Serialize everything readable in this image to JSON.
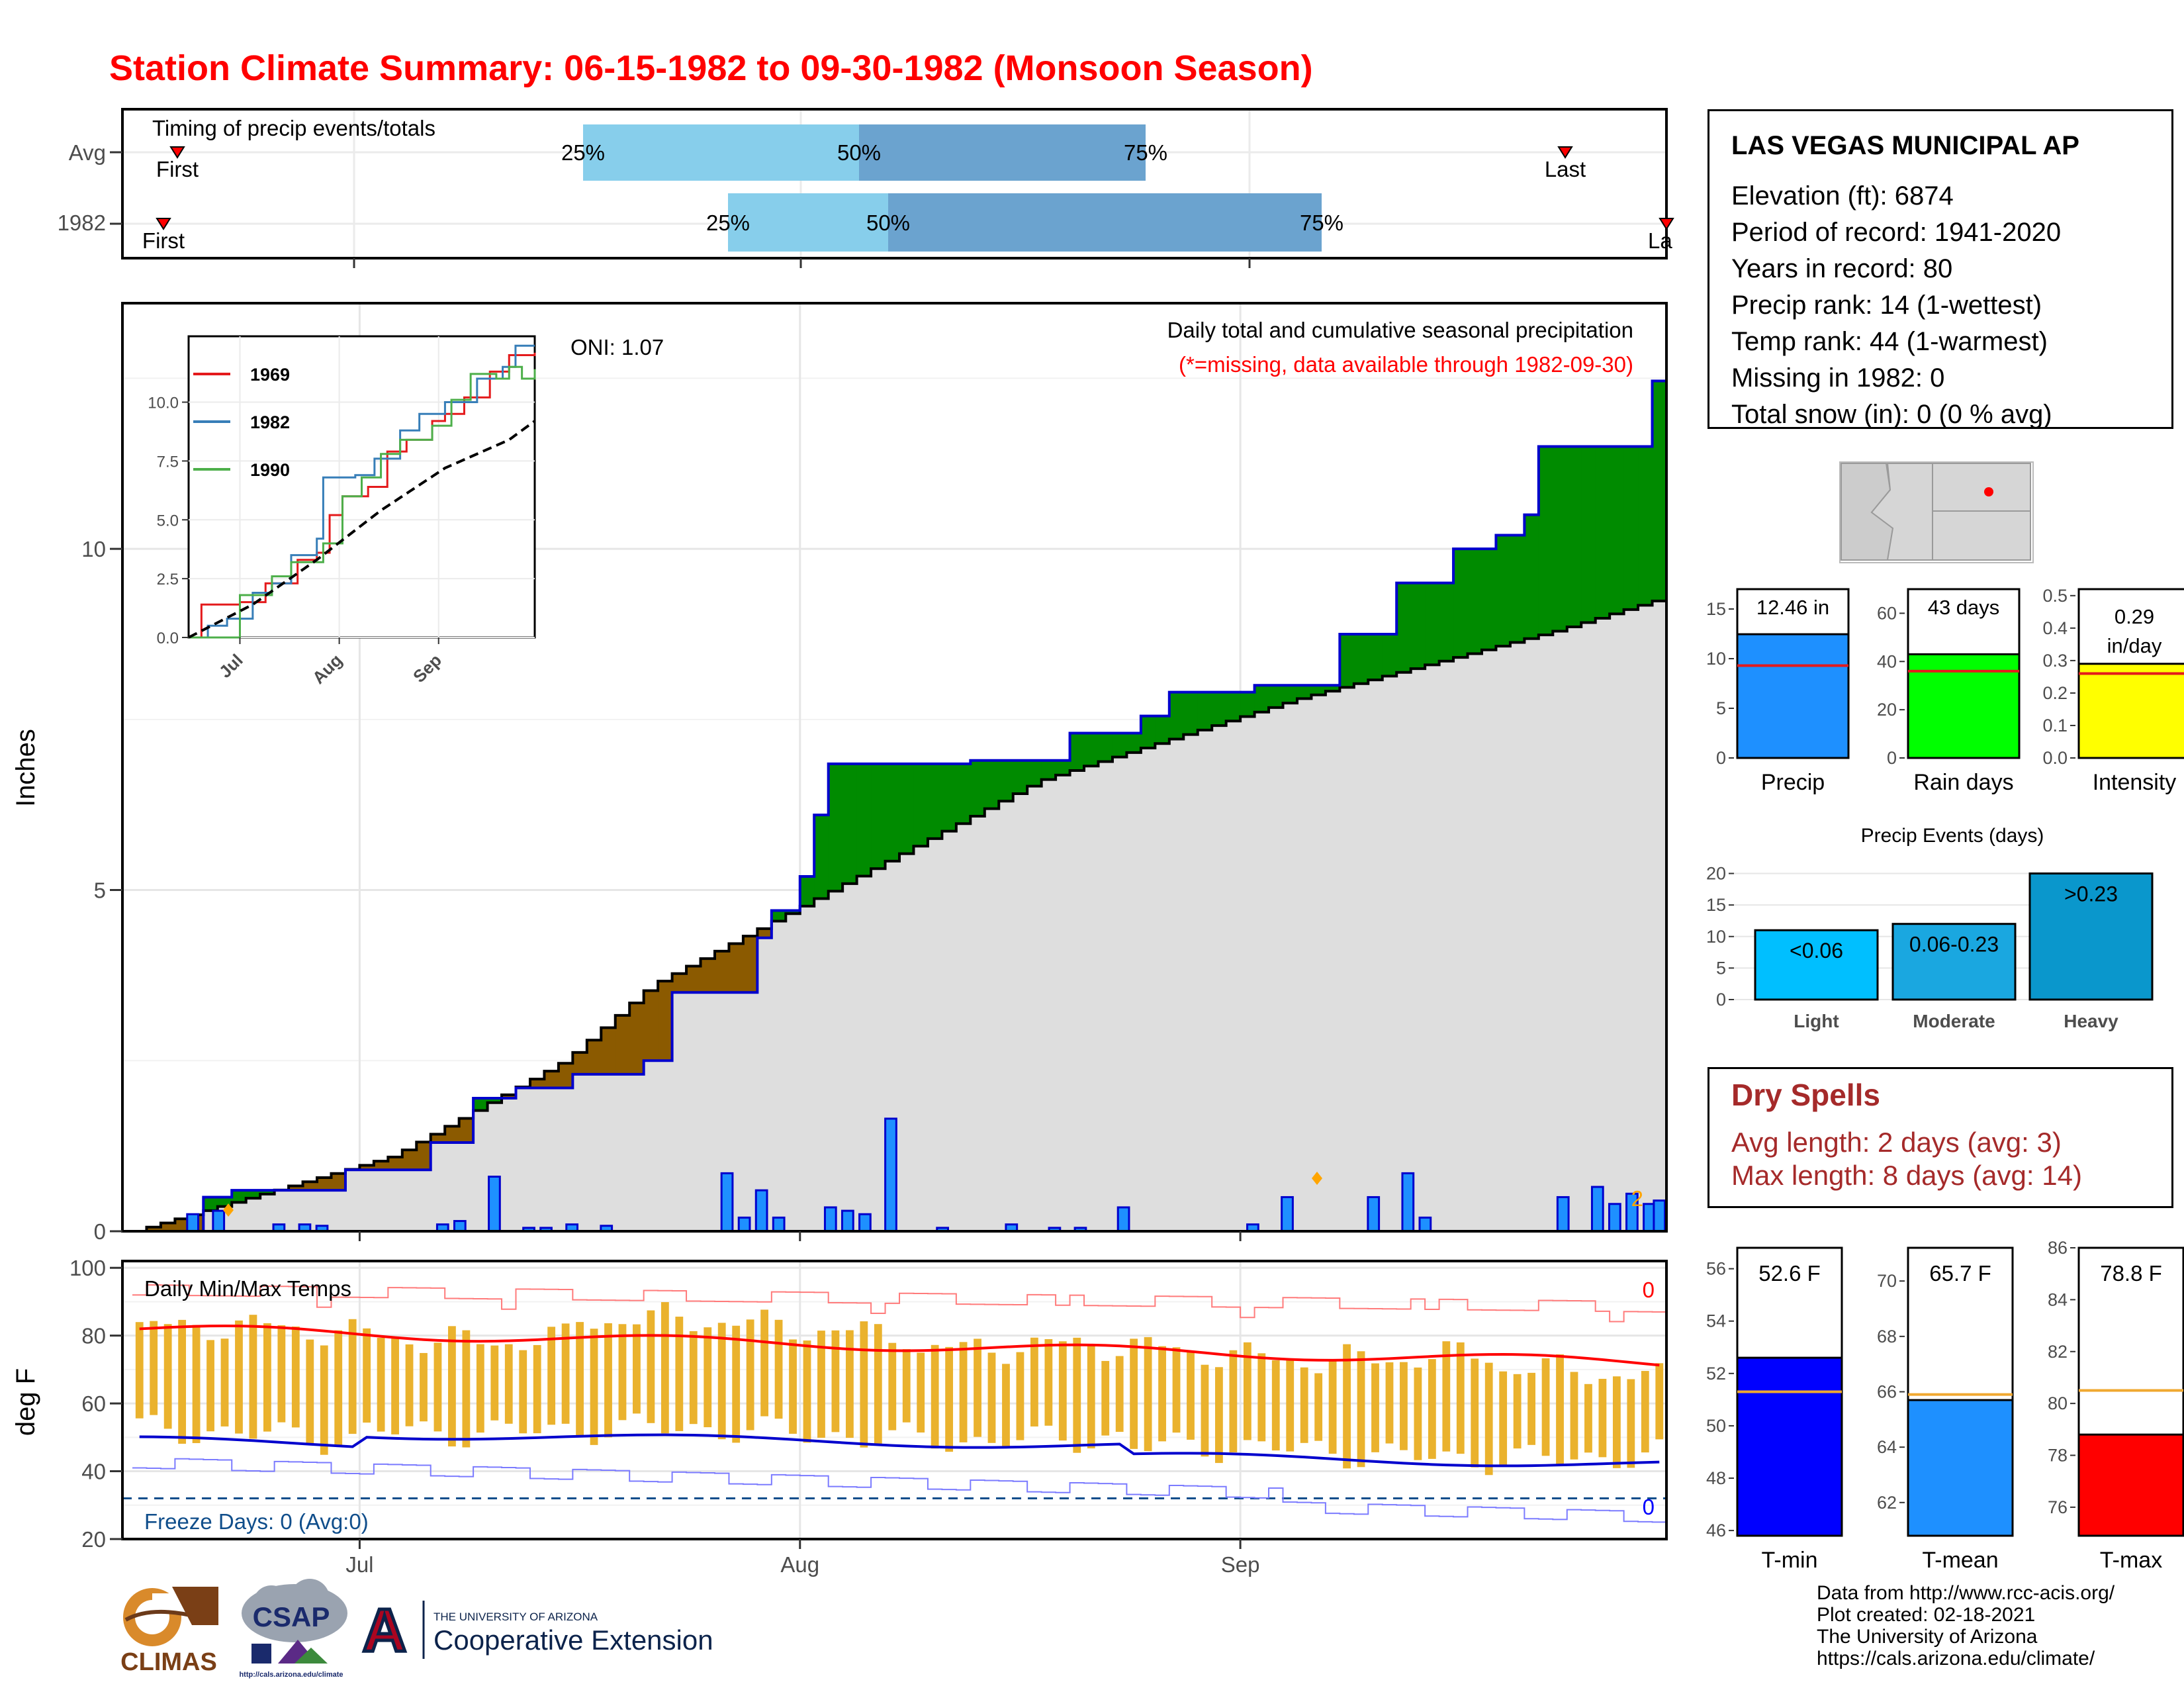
{
  "title": "Station Climate Summary: 06-15-1982 to 09-30-1982 (Monsoon Season)",
  "timing": {
    "label": "Timing of precip events/totals",
    "rows": [
      {
        "name": "Avg",
        "first": "First",
        "last": "Last",
        "q25": "25%",
        "q50": "50%",
        "q75": "75%"
      },
      {
        "name": "1982",
        "first": "First",
        "last": "La",
        "q25": "25%",
        "q50": "50%",
        "q75": "75%"
      }
    ]
  },
  "main": {
    "ylabel": "Inches",
    "oni": "ONI: 1.07",
    "caption": "Daily total and cumulative seasonal precipitation",
    "missing_note": "(*=missing, data available through 1982-09-30)",
    "missing_count": "2",
    "yticks": [
      "0",
      "5",
      "10"
    ]
  },
  "inset": {
    "legend": [
      "1969",
      "1982",
      "1990"
    ],
    "yticks": [
      "0.0",
      "2.5",
      "5.0",
      "7.5",
      "10.0"
    ],
    "xticks": [
      "Jul",
      "Aug",
      "Sep"
    ]
  },
  "temps": {
    "label": "Daily Min/Max Temps",
    "ylabel": "deg F",
    "yticks": [
      "20",
      "40",
      "60",
      "80",
      "100"
    ],
    "xticks": [
      "Jul",
      "Aug",
      "Sep"
    ],
    "hot_count": "0",
    "freeze_count": "0",
    "freeze_label": "Freeze Days: 0 (Avg:0)"
  },
  "station": {
    "name": "LAS VEGAS MUNICIPAL AP",
    "elevation": "Elevation (ft): 6874",
    "period": "Period of record: 1941-2020",
    "years": "Years in record: 80",
    "precip_rank": "Precip rank: 14 (1-wettest)",
    "temp_rank": "Temp rank: 44 (1-warmest)",
    "missing": "Missing in 1982: 0",
    "snow": "Total snow (in): 0 (0 % avg)"
  },
  "summary_bars": [
    {
      "label": "Precip",
      "value_text": "12.46 in",
      "value": 12.46,
      "avg": 9.3,
      "ymax": 17,
      "yticks": [
        "0",
        "5",
        "10",
        "15"
      ],
      "color": "#1e90ff"
    },
    {
      "label": "Rain days",
      "value_text": "43 days",
      "value": 43,
      "avg": 36,
      "ymax": 70,
      "yticks": [
        "0",
        "20",
        "40",
        "60"
      ],
      "color": "#00ff00"
    },
    {
      "label": "Intensity",
      "value_text": "0.29 in/day",
      "value": 0.29,
      "avg": 0.26,
      "ymax": 0.52,
      "yticks": [
        "0.0",
        "0.1",
        "0.2",
        "0.3",
        "0.4",
        "0.5"
      ],
      "color": "#ffff00"
    }
  ],
  "events": {
    "title": "Precip Events (days)",
    "yticks": [
      "0",
      "5",
      "10",
      "15",
      "20"
    ],
    "bars": [
      {
        "label": "Light",
        "tag": "<0.06",
        "value": 11
      },
      {
        "label": "Moderate",
        "tag": "0.06-0.23",
        "value": 12
      },
      {
        "label": "Heavy",
        "tag": ">0.23",
        "value": 20
      }
    ]
  },
  "dry_spells": {
    "title": "Dry Spells",
    "avg_length": "Avg length: 2 days (avg: 3)",
    "max_length": "Max length: 8 days (avg: 14)"
  },
  "temp_bars": [
    {
      "label": "T-min",
      "value_text": "52.6 F",
      "value": 52.6,
      "avg": 51.3,
      "ymin": 45.8,
      "ymax": 56.8,
      "yticks": [
        "46",
        "48",
        "50",
        "52",
        "54",
        "56"
      ],
      "color": "#0000ff"
    },
    {
      "label": "T-mean",
      "value_text": "65.7 F",
      "value": 65.7,
      "avg": 65.9,
      "ymin": 60.8,
      "ymax": 71.2,
      "yticks": [
        "62",
        "64",
        "66",
        "68",
        "70"
      ],
      "color": "#1e90ff"
    },
    {
      "label": "T-max",
      "value_text": "78.8 F",
      "value": 78.8,
      "avg": 80.5,
      "ymin": 74.9,
      "ymax": 86.0,
      "yticks": [
        "76",
        "78",
        "80",
        "82",
        "84",
        "86"
      ],
      "color": "#ff0000"
    }
  ],
  "credits": [
    "Data from http://www.rcc-acis.org/",
    "Plot created: 02-18-2021",
    "The University of Arizona",
    "https://cals.arizona.edu/climate/"
  ],
  "logos": {
    "climas": "CLIMAS",
    "csap": "CSAP",
    "csap_url": "http://cals.arizona.edu/climate",
    "ua_line1": "THE UNIVERSITY OF ARIZONA",
    "ua_line2": "Cooperative Extension",
    "ua_mark": "A"
  },
  "chart_data": {
    "type": "area",
    "title": "Daily total and cumulative seasonal precipitation",
    "ylabel": "Inches",
    "ylim": [
      0,
      13.6
    ],
    "x_start": "1982-06-15",
    "x_end": "1982-09-30",
    "series": [
      {
        "name": "cumulative 1982",
        "knots_day_value": [
          [
            0,
            0
          ],
          [
            7,
            0.5
          ],
          [
            11,
            0.6
          ],
          [
            24,
            0.9
          ],
          [
            33,
            1.3
          ],
          [
            38,
            1.95
          ],
          [
            43,
            2.1
          ],
          [
            50,
            2.3
          ],
          [
            59,
            2.5
          ],
          [
            61,
            3.5
          ],
          [
            72,
            4.3
          ],
          [
            73,
            4.7
          ],
          [
            76,
            5.2
          ],
          [
            78,
            6.1
          ],
          [
            80,
            6.85
          ],
          [
            88,
            6.85
          ],
          [
            96,
            6.9
          ],
          [
            108,
            7.3
          ],
          [
            116,
            7.55
          ],
          [
            120,
            7.9
          ],
          [
            130,
            8.0
          ],
          [
            139,
            8.75
          ],
          [
            146,
            9.5
          ],
          [
            150,
            9.5
          ],
          [
            153,
            10.0
          ],
          [
            158,
            10.2
          ],
          [
            160,
            10.5
          ],
          [
            162,
            11.2
          ],
          [
            163,
            11.5
          ],
          [
            173,
            11.5
          ],
          [
            176,
            12.46
          ],
          [
            178,
            12.46
          ]
        ]
      },
      {
        "name": "cumulative average",
        "knots_day_value": [
          [
            0,
            0
          ],
          [
            30,
            1.1
          ],
          [
            50,
            2.5
          ],
          [
            60,
            3.6
          ],
          [
            75,
            4.6
          ],
          [
            90,
            5.6
          ],
          [
            105,
            6.6
          ],
          [
            120,
            7.2
          ],
          [
            135,
            7.8
          ],
          [
            150,
            8.3
          ],
          [
            165,
            8.8
          ],
          [
            178,
            9.3
          ]
        ]
      },
      {
        "name": "daily precip",
        "day_value": [
          [
            7,
            0.25
          ],
          [
            10,
            0.3
          ],
          [
            17,
            0.1
          ],
          [
            20,
            0.1
          ],
          [
            22,
            0.08
          ],
          [
            36,
            0.1
          ],
          [
            38,
            0.15
          ],
          [
            42,
            0.8
          ],
          [
            46,
            0.05
          ],
          [
            48,
            0.05
          ],
          [
            51,
            0.1
          ],
          [
            55,
            0.08
          ],
          [
            69,
            0.85
          ],
          [
            71,
            0.2
          ],
          [
            73,
            0.6
          ],
          [
            75,
            0.2
          ],
          [
            81,
            0.35
          ],
          [
            83,
            0.3
          ],
          [
            85,
            0.25
          ],
          [
            88,
            1.65
          ],
          [
            94,
            0.05
          ],
          [
            102,
            0.1
          ],
          [
            107,
            0.05
          ],
          [
            110,
            0.05
          ],
          [
            115,
            0.35
          ],
          [
            130,
            0.1
          ],
          [
            134,
            0.5
          ],
          [
            144,
            0.5
          ],
          [
            148,
            0.85
          ],
          [
            150,
            0.2
          ],
          [
            166,
            0.5
          ],
          [
            170,
            0.65
          ],
          [
            172,
            0.4
          ],
          [
            174,
            0.55
          ],
          [
            176,
            0.4
          ],
          [
            194,
            0.45
          ]
        ]
      }
    ],
    "temps": {
      "ylim": [
        20,
        102
      ],
      "max_avg_start": 82,
      "max_avg_end": 72,
      "min_avg_start": 49,
      "min_avg_end": 42,
      "freeze_line": 32
    }
  }
}
